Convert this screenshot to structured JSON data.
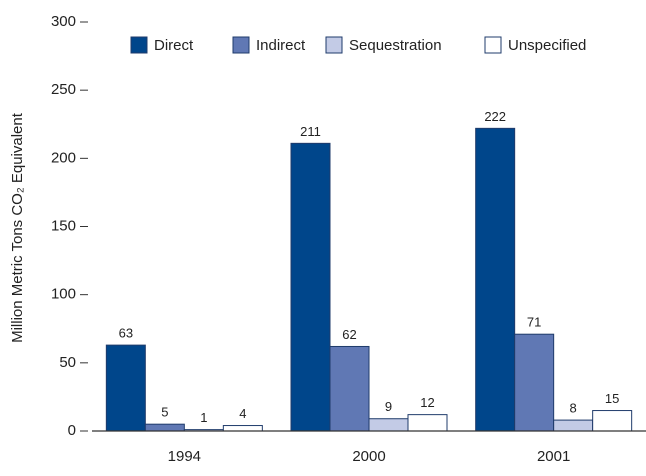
{
  "chart_data": {
    "type": "bar",
    "y_label": "Million Metric Tons CO₂ Equivalent",
    "categories": [
      "1994",
      "2000",
      "2001"
    ],
    "series": [
      {
        "name": "Direct",
        "color": "#00468b",
        "values": [
          63,
          211,
          222
        ]
      },
      {
        "name": "Indirect",
        "color": "#6078b4",
        "values": [
          5,
          62,
          71
        ]
      },
      {
        "name": "Sequestration",
        "color": "#c3cbe6",
        "values": [
          1,
          9,
          8
        ]
      },
      {
        "name": "Unspecified",
        "color": "#ffffff",
        "values": [
          4,
          12,
          15
        ]
      }
    ],
    "ylim": [
      0,
      300
    ],
    "yticks": [
      0,
      50,
      100,
      150,
      200,
      250,
      300
    ],
    "legend": "top",
    "grid": false
  }
}
